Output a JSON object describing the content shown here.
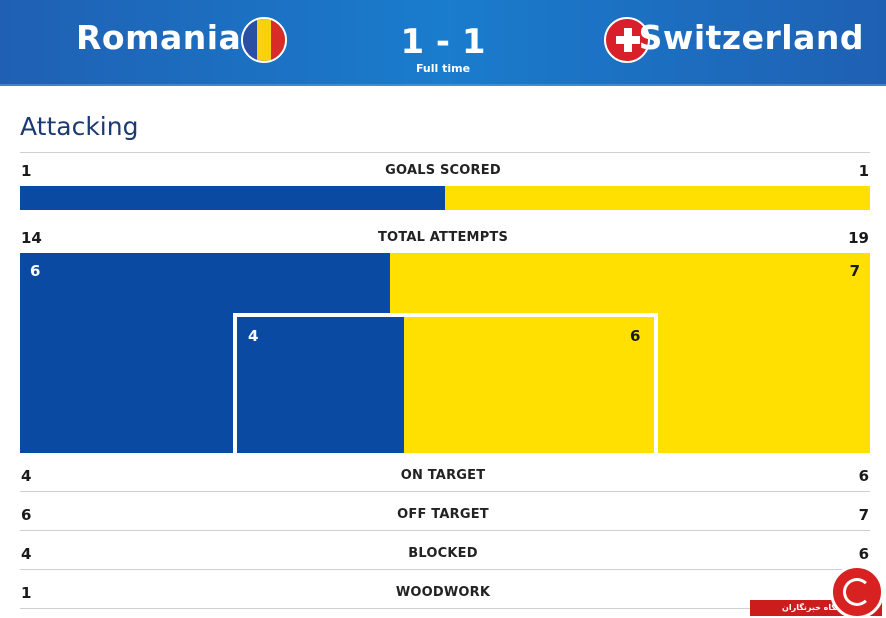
{
  "match": {
    "home_team": "Romania",
    "away_team": "Switzerland",
    "score": "1 - 1",
    "status": "Full time",
    "home_flag_colors": [
      "#2b4fa3",
      "#f6d20f",
      "#d82c28"
    ],
    "away_flag_colors": [
      "#d8202a",
      "#ffffff"
    ]
  },
  "section": {
    "title": "Attacking"
  },
  "colors": {
    "home": "#0b4aa2",
    "away": "#ffe000"
  },
  "goals": {
    "label": "GOALS SCORED",
    "home": 1,
    "away": 1
  },
  "attempts": {
    "label": "TOTAL ATTEMPTS",
    "home": 14,
    "away": 19,
    "outer_home": 6,
    "outer_away": 7,
    "inner_home": 4,
    "inner_away": 6
  },
  "stats": [
    {
      "label": "ON TARGET",
      "home": "4",
      "away": "6"
    },
    {
      "label": "OFF TARGET",
      "home": "6",
      "away": "7"
    },
    {
      "label": "BLOCKED",
      "home": "4",
      "away": "6"
    },
    {
      "label": "WOODWORK",
      "home": "1",
      "away": ""
    }
  ],
  "watermark": {
    "text": "باشگاه خبرنگاران"
  }
}
